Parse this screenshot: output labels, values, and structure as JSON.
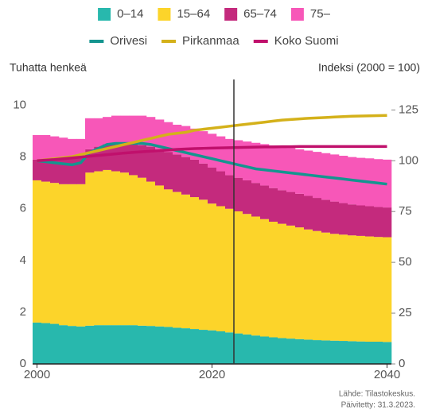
{
  "chart_data": {
    "type": "bar",
    "stacked": true,
    "x": [
      2000,
      2001,
      2002,
      2003,
      2004,
      2005,
      2006,
      2007,
      2008,
      2009,
      2010,
      2011,
      2012,
      2013,
      2014,
      2015,
      2016,
      2017,
      2018,
      2019,
      2020,
      2021,
      2022,
      2023,
      2024,
      2025,
      2026,
      2027,
      2028,
      2029,
      2030,
      2031,
      2032,
      2033,
      2034,
      2035,
      2036,
      2037,
      2038,
      2039,
      2040
    ],
    "series": [
      {
        "name": "0–14",
        "type": "bar",
        "color": "#28b8ad",
        "values": [
          1.6,
          1.58,
          1.55,
          1.5,
          1.47,
          1.45,
          1.48,
          1.5,
          1.5,
          1.5,
          1.5,
          1.5,
          1.48,
          1.47,
          1.45,
          1.43,
          1.4,
          1.38,
          1.35,
          1.32,
          1.3,
          1.26,
          1.22,
          1.18,
          1.14,
          1.1,
          1.06,
          1.03,
          1.0,
          0.98,
          0.96,
          0.94,
          0.92,
          0.91,
          0.9,
          0.89,
          0.88,
          0.87,
          0.86,
          0.86,
          0.85
        ]
      },
      {
        "name": "15–64",
        "type": "bar",
        "color": "#fcd42a",
        "values": [
          5.5,
          5.47,
          5.45,
          5.45,
          5.48,
          5.5,
          5.92,
          5.95,
          6.0,
          5.95,
          5.9,
          5.8,
          5.72,
          5.58,
          5.45,
          5.32,
          5.25,
          5.17,
          5.1,
          5.03,
          4.9,
          4.84,
          4.78,
          4.72,
          4.66,
          4.6,
          4.54,
          4.47,
          4.42,
          4.37,
          4.32,
          4.26,
          4.22,
          4.17,
          4.13,
          4.11,
          4.09,
          4.08,
          4.07,
          4.05,
          4.05
        ]
      },
      {
        "name": "65–74",
        "type": "bar",
        "color": "#c42a7d",
        "values": [
          0.8,
          0.85,
          0.95,
          1.0,
          1.05,
          1.05,
          0.9,
          0.95,
          1.0,
          1.05,
          1.1,
          1.2,
          1.25,
          1.35,
          1.4,
          1.45,
          1.45,
          1.45,
          1.45,
          1.4,
          1.4,
          1.35,
          1.3,
          1.3,
          1.3,
          1.3,
          1.3,
          1.3,
          1.3,
          1.3,
          1.3,
          1.3,
          1.28,
          1.27,
          1.25,
          1.22,
          1.2,
          1.18,
          1.17,
          1.16,
          1.15
        ]
      },
      {
        "name": "75–",
        "type": "bar",
        "color": "#f757b8",
        "values": [
          0.95,
          0.95,
          0.85,
          0.8,
          0.7,
          0.7,
          1.2,
          1.1,
          1.05,
          1.1,
          1.1,
          1.1,
          1.15,
          1.15,
          1.15,
          1.15,
          1.15,
          1.2,
          1.2,
          1.25,
          1.3,
          1.35,
          1.4,
          1.45,
          1.5,
          1.55,
          1.6,
          1.65,
          1.68,
          1.7,
          1.72,
          1.75,
          1.78,
          1.8,
          1.82,
          1.83,
          1.83,
          1.84,
          1.85,
          1.85,
          1.85
        ]
      },
      {
        "name": "Orivesi",
        "type": "line",
        "axis": "y2",
        "color": "#14958f",
        "values": [
          100,
          99.5,
          99,
          98.5,
          98,
          99,
          104,
          106,
          108,
          108.5,
          108.5,
          108.5,
          108.5,
          108,
          107,
          106,
          105,
          104,
          103,
          102,
          101,
          100,
          99,
          98,
          97,
          96,
          95.5,
          95,
          94.5,
          94,
          93.5,
          93,
          92.5,
          92,
          91.5,
          91,
          90.5,
          90,
          89.5,
          89,
          88.5
        ]
      },
      {
        "name": "Pirkanmaa",
        "type": "line",
        "axis": "y2",
        "color": "#d4b11a",
        "values": [
          100,
          100.5,
          101,
          101.5,
          102,
          103,
          104,
          105,
          106,
          107,
          108,
          109,
          110,
          111,
          112,
          113,
          113.5,
          114,
          115,
          115.5,
          116,
          116.5,
          117,
          117.5,
          118,
          118.5,
          119,
          119.5,
          120,
          120.3,
          120.6,
          120.9,
          121.1,
          121.3,
          121.5,
          121.7,
          121.9,
          122,
          122.1,
          122.2,
          122.3
        ]
      },
      {
        "name": "Koko Suomi",
        "type": "line",
        "axis": "y2",
        "color": "#c0106c",
        "values": [
          100,
          100.3,
          100.6,
          101,
          101.4,
          101.8,
          102.2,
          102.6,
          103,
          103.4,
          103.8,
          104.1,
          104.4,
          104.7,
          105,
          105.3,
          105.6,
          105.8,
          106,
          106.1,
          106.2,
          106.3,
          106.4,
          106.5,
          106.6,
          106.7,
          106.8,
          106.8,
          106.9,
          106.9,
          107,
          107,
          107,
          107,
          107,
          107,
          107,
          107,
          107,
          107,
          107
        ]
      }
    ],
    "y_label": "Tuhatta henkeä",
    "y2_label": "Indeksi (2000 = 100)",
    "xlim": [
      1999.5,
      2040.5
    ],
    "xticks": [
      2000,
      2020,
      2040
    ],
    "ylim": [
      0,
      11
    ],
    "yticks": [
      0,
      2,
      4,
      6,
      8,
      10
    ],
    "y2lim": [
      0,
      140
    ],
    "y2ticks": [
      0,
      25,
      50,
      75,
      100,
      125
    ],
    "vline": 2022.5,
    "source": [
      "Lähde: Tilastokeskus.",
      "Päivitetty: 31.3.2023."
    ]
  }
}
